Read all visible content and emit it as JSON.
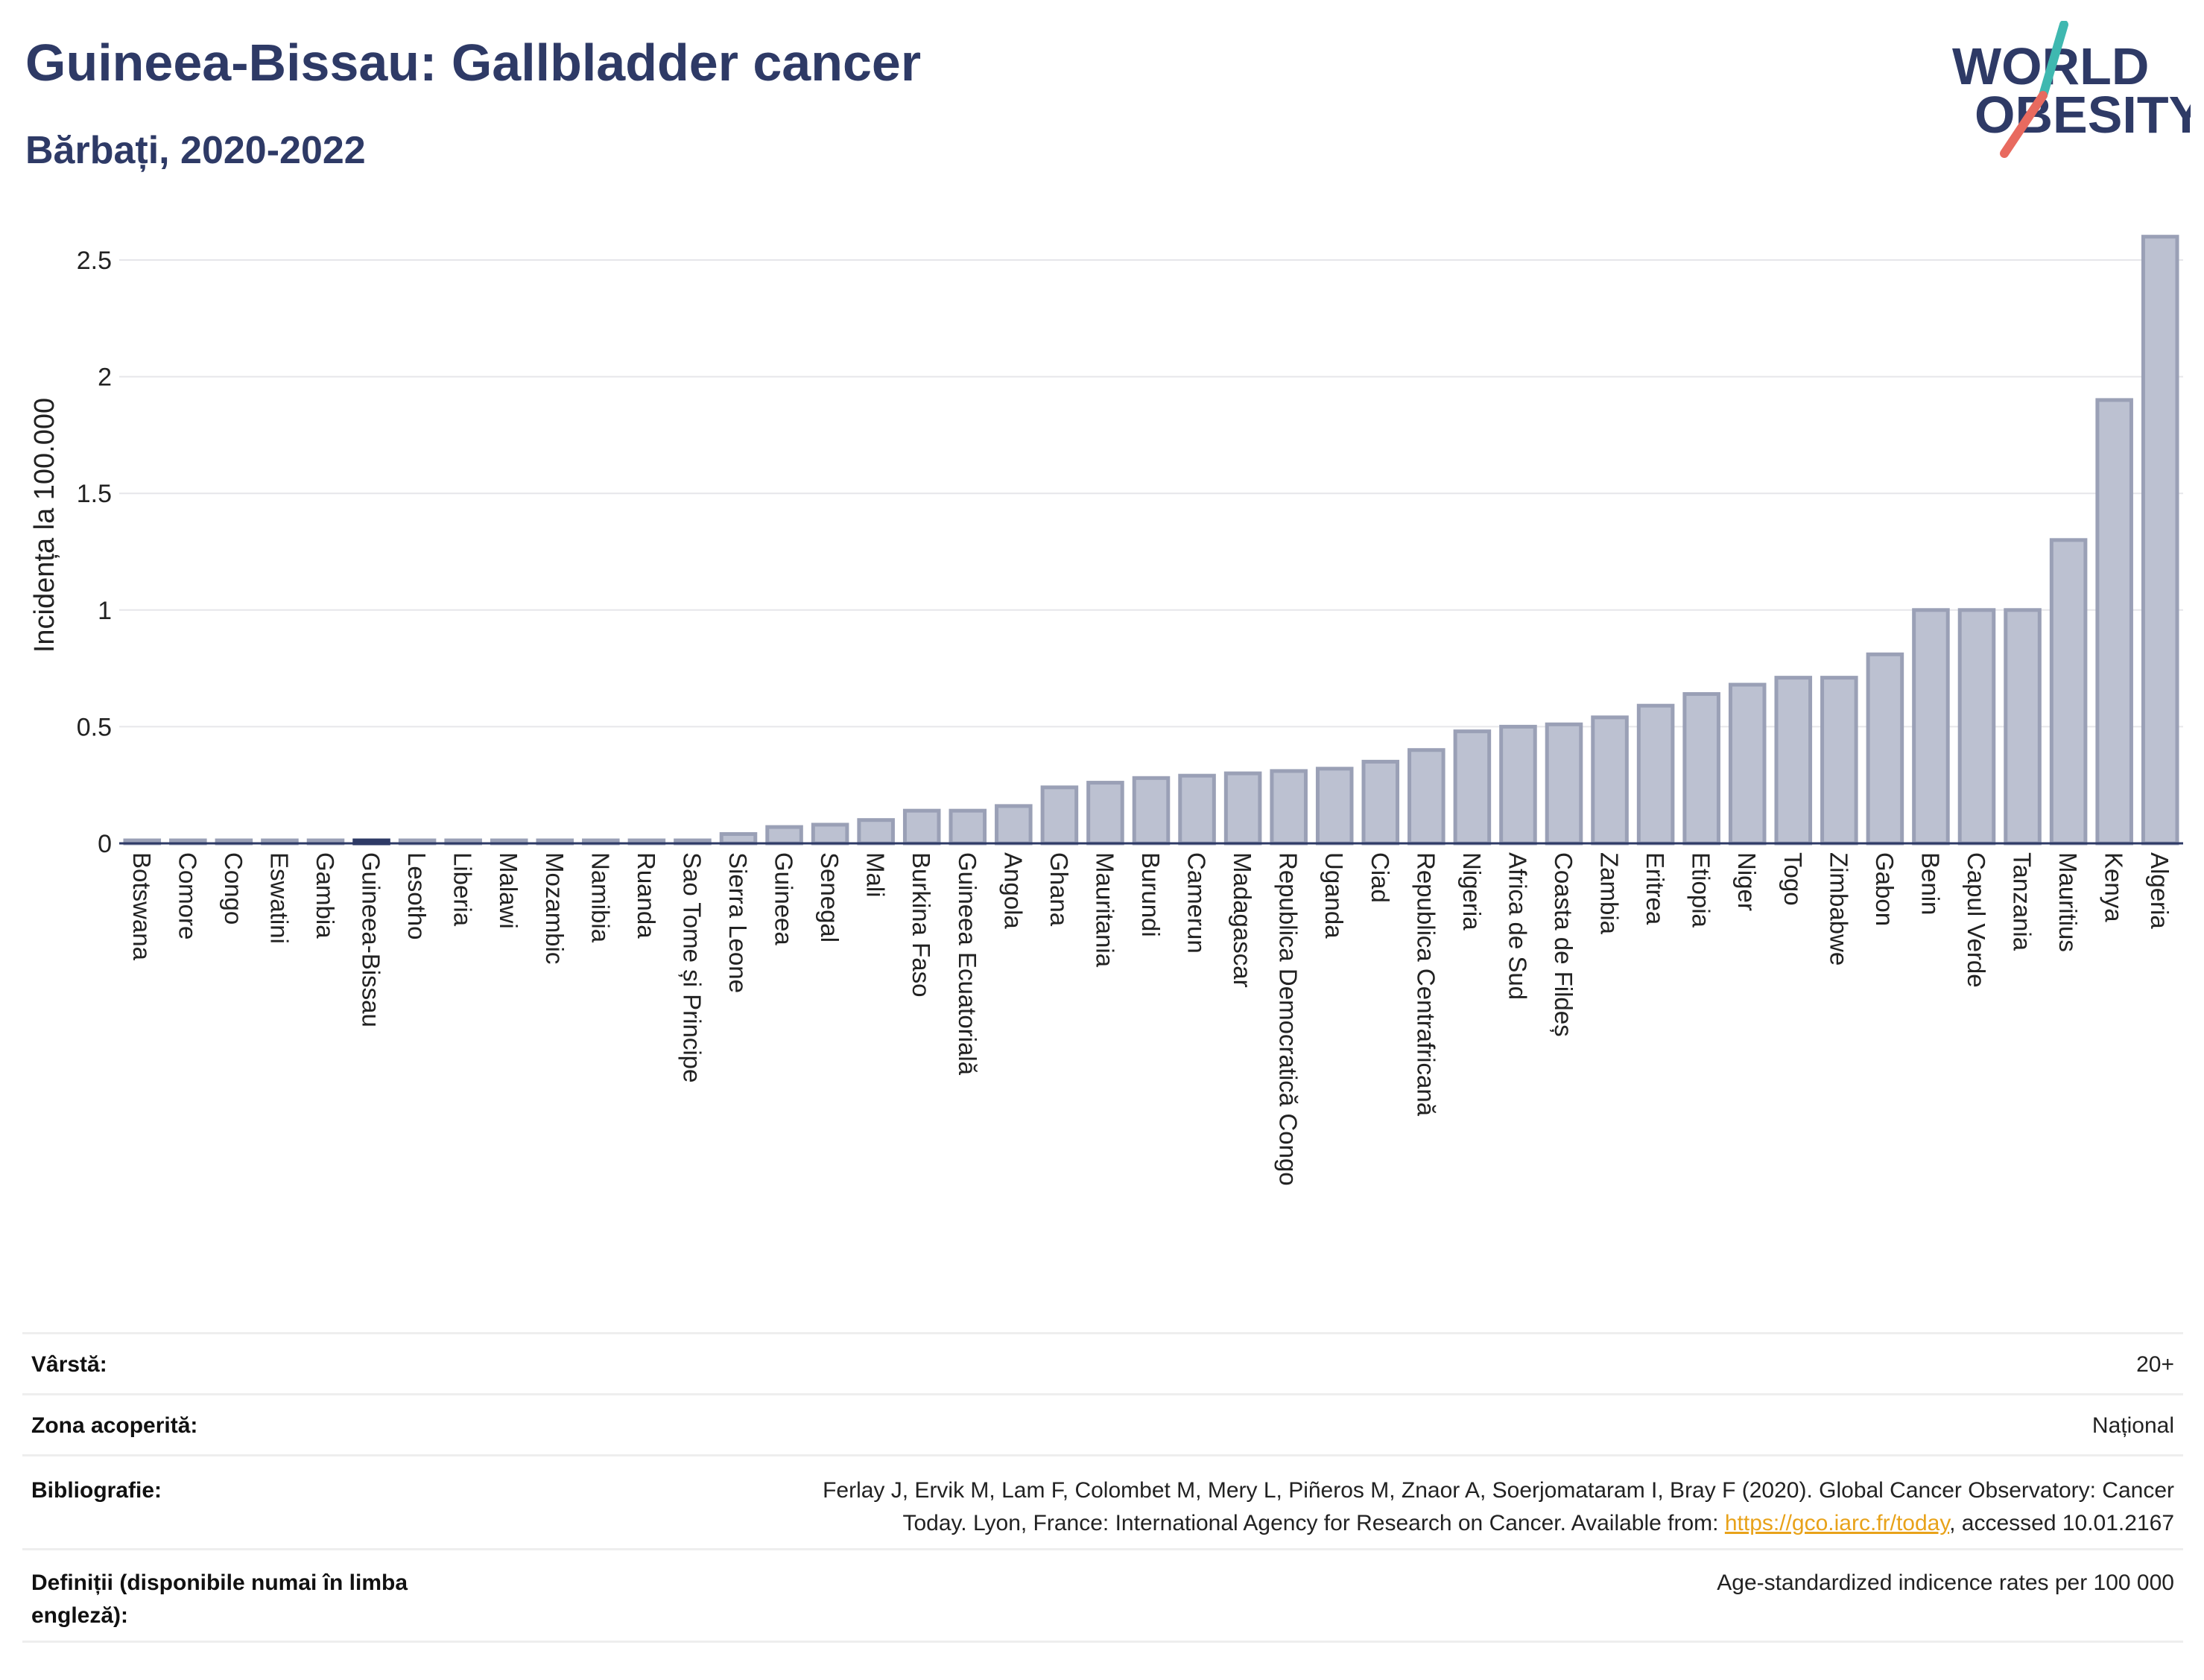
{
  "header": {
    "title": "Guineea-Bissau: Gallbladder cancer",
    "subtitle": "Bărbați, 2020-2022"
  },
  "logo": {
    "line1": "WORLD",
    "line2": "OBESITY"
  },
  "colors": {
    "bar_fill": "#bcc1d1",
    "bar_stroke": "#9aa0b6",
    "highlight": "#2e3a66",
    "title": "#2e3a66"
  },
  "chart_data": {
    "type": "bar",
    "ylabel": "Incidența la 100.000",
    "xlabel": "",
    "ylim": [
      0,
      2.7
    ],
    "yticks": [
      0,
      0.5,
      1,
      1.5,
      2,
      2.5
    ],
    "ytick_labels": [
      "0",
      "0.5",
      "1",
      "1.5",
      "2",
      "2.5"
    ],
    "grid": true,
    "highlight": "Guineea-Bissau",
    "categories": [
      "Botswana",
      "Comore",
      "Congo",
      "Eswatini",
      "Gambia",
      "Guineea-Bissau",
      "Lesotho",
      "Liberia",
      "Malawi",
      "Mozambic",
      "Namibia",
      "Ruanda",
      "Sao Tome și Principe",
      "Sierra Leone",
      "Guineea",
      "Senegal",
      "Mali",
      "Burkina Faso",
      "Guineea Ecuatorială",
      "Angola",
      "Ghana",
      "Mauritania",
      "Burundi",
      "Camerun",
      "Madagascar",
      "Republica Democratică Congo",
      "Uganda",
      "Ciad",
      "Republica Centrafricană",
      "Nigeria",
      "Africa de Sud",
      "Coasta de Fildeș",
      "Zambia",
      "Eritrea",
      "Etiopia",
      "Niger",
      "Togo",
      "Zimbabwe",
      "Gabon",
      "Benin",
      "Capul Verde",
      "Tanzania",
      "Mauritius",
      "Kenya",
      "Algeria"
    ],
    "values": [
      0.01,
      0.01,
      0.01,
      0.01,
      0.01,
      0.01,
      0.01,
      0.01,
      0.01,
      0.01,
      0.01,
      0.01,
      0.01,
      0.04,
      0.07,
      0.08,
      0.1,
      0.14,
      0.14,
      0.16,
      0.24,
      0.26,
      0.28,
      0.29,
      0.3,
      0.31,
      0.32,
      0.35,
      0.4,
      0.48,
      0.5,
      0.51,
      0.54,
      0.59,
      0.64,
      0.68,
      0.71,
      0.71,
      0.81,
      1.0,
      1.0,
      1.0,
      1.3,
      1.9,
      2.6
    ]
  },
  "meta": {
    "age_label": "Vârstă:",
    "age_value": "20+",
    "area_label": "Zona acoperită:",
    "area_value": "Național",
    "biblio_label": "Bibliografie:",
    "biblio_line1": "Ferlay J, Ervik M, Lam F, Colombet M, Mery L, Piñeros M, Znaor A, Soerjomataram I, Bray F (2020). Global Cancer Observatory: Cancer",
    "biblio_line2_pre": "Today. Lyon, France: International Agency for Research on Cancer. Available from: ",
    "biblio_link": "https://gco.iarc.fr/today",
    "biblio_line2_post": ", accessed 10.01.2167",
    "def_label_1": "Definiții (disponibile numai în limba",
    "def_label_2": "engleză):",
    "def_value": "Age-standardized indicence rates per 100 000"
  }
}
